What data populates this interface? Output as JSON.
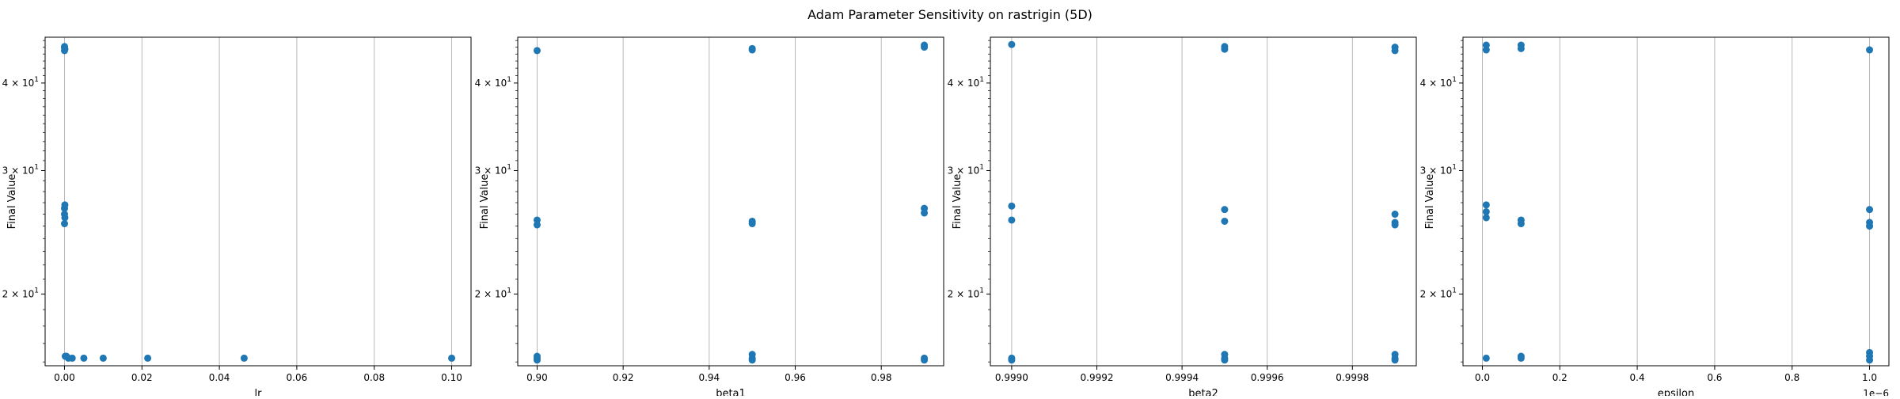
{
  "figure": {
    "title": "Adam Parameter Sensitivity on rastrigin (5D)",
    "marker_color": "#1f77b4",
    "grid_color": "#b0b0b0"
  },
  "chart_data": [
    {
      "type": "scatter",
      "xlabel": "lr",
      "ylabel": "Final Value",
      "yscale": "log",
      "xlim": [
        -0.005,
        0.105
      ],
      "ylim": [
        15.8,
        46.5
      ],
      "grid": "x-axis vertical lines",
      "x_ticks": [
        0.0,
        0.02,
        0.04,
        0.06,
        0.08,
        0.1
      ],
      "x_tick_labels": [
        "0.00",
        "0.02",
        "0.04",
        "0.06",
        "0.08",
        "0.10"
      ],
      "x_offset_text": "",
      "y_ticks": [
        20,
        30,
        40
      ],
      "y_tick_labels": [
        [
          "2",
          "1"
        ],
        [
          "3",
          "1"
        ],
        [
          "4",
          "1"
        ]
      ],
      "points": [
        [
          1e-05,
          44.5
        ],
        [
          1e-05,
          44.9
        ],
        [
          0.0001,
          44.7
        ],
        [
          1e-05,
          45.1
        ],
        [
          1e-05,
          26.5
        ],
        [
          1e-05,
          26.0
        ],
        [
          0.0001,
          25.7
        ],
        [
          1e-05,
          25.2
        ],
        [
          0.0001,
          26.8
        ],
        [
          0.0002,
          16.3
        ],
        [
          0.0005,
          16.3
        ],
        [
          0.001,
          16.2
        ],
        [
          0.002,
          16.2
        ],
        [
          0.005,
          16.2
        ],
        [
          0.01,
          16.2
        ],
        [
          0.0215,
          16.2
        ],
        [
          0.0464,
          16.2
        ],
        [
          0.1,
          16.2
        ]
      ]
    },
    {
      "type": "scatter",
      "xlabel": "beta1",
      "ylabel": "Final Value",
      "yscale": "log",
      "xlim": [
        0.8955,
        0.9945
      ],
      "ylim": [
        15.8,
        46.5
      ],
      "grid": "x-axis vertical lines",
      "x_ticks": [
        0.9,
        0.92,
        0.94,
        0.96,
        0.98
      ],
      "x_tick_labels": [
        "0.90",
        "0.92",
        "0.94",
        "0.96",
        "0.98"
      ],
      "x_offset_text": "",
      "y_ticks": [
        20,
        30,
        40
      ],
      "y_tick_labels": [
        [
          "2",
          "1"
        ],
        [
          "3",
          "1"
        ],
        [
          "4",
          "1"
        ]
      ],
      "points": [
        [
          0.9,
          44.5
        ],
        [
          0.9,
          25.5
        ],
        [
          0.9,
          25.1
        ],
        [
          0.9,
          16.3
        ],
        [
          0.9,
          16.2
        ],
        [
          0.9,
          16.1
        ],
        [
          0.95,
          44.6
        ],
        [
          0.95,
          44.8
        ],
        [
          0.95,
          25.4
        ],
        [
          0.95,
          25.2
        ],
        [
          0.95,
          16.4
        ],
        [
          0.95,
          16.2
        ],
        [
          0.95,
          16.1
        ],
        [
          0.99,
          45.3
        ],
        [
          0.99,
          45.0
        ],
        [
          0.99,
          26.5
        ],
        [
          0.99,
          26.1
        ],
        [
          0.99,
          16.2
        ],
        [
          0.99,
          16.1
        ]
      ]
    },
    {
      "type": "scatter",
      "xlabel": "beta2",
      "ylabel": "Final Value",
      "yscale": "log",
      "xlim": [
        0.99895,
        0.99995
      ],
      "ylim": [
        15.8,
        46.5
      ],
      "grid": "x-axis vertical lines",
      "x_ticks": [
        0.999,
        0.9992,
        0.9994,
        0.9996,
        0.9998
      ],
      "x_tick_labels": [
        "0.9990",
        "0.9992",
        "0.9994",
        "0.9996",
        "0.9998"
      ],
      "x_offset_text": "",
      "y_ticks": [
        20,
        30,
        40
      ],
      "y_tick_labels": [
        [
          "2",
          "1"
        ],
        [
          "3",
          "1"
        ],
        [
          "4",
          "1"
        ]
      ],
      "points": [
        [
          0.999,
          45.4
        ],
        [
          0.999,
          26.7
        ],
        [
          0.999,
          25.5
        ],
        [
          0.999,
          16.2
        ],
        [
          0.999,
          16.1
        ],
        [
          0.9995,
          45.1
        ],
        [
          0.9995,
          44.7
        ],
        [
          0.9995,
          26.4
        ],
        [
          0.9995,
          25.4
        ],
        [
          0.9995,
          16.4
        ],
        [
          0.9995,
          16.2
        ],
        [
          0.9995,
          16.1
        ],
        [
          0.9999,
          45.0
        ],
        [
          0.9999,
          44.5
        ],
        [
          0.9999,
          26.0
        ],
        [
          0.9999,
          25.3
        ],
        [
          0.9999,
          25.1
        ],
        [
          0.9999,
          16.4
        ],
        [
          0.9999,
          16.2
        ],
        [
          0.9999,
          16.1
        ]
      ]
    },
    {
      "type": "scatter",
      "xlabel": "epsilon",
      "ylabel": "Final Value",
      "yscale": "log",
      "xlim": [
        -5e-08,
        1.05e-06
      ],
      "ylim": [
        15.8,
        46.5
      ],
      "grid": "x-axis vertical lines",
      "x_ticks": [
        0,
        2e-07,
        4e-07,
        6e-07,
        8e-07,
        1e-06
      ],
      "x_tick_labels": [
        "0.0",
        "0.2",
        "0.4",
        "0.6",
        "0.8",
        "1.0"
      ],
      "x_offset_text": "1e−6",
      "y_ticks": [
        20,
        30,
        40
      ],
      "y_tick_labels": [
        [
          "2",
          "1"
        ],
        [
          "3",
          "1"
        ],
        [
          "4",
          "1"
        ]
      ],
      "points": [
        [
          1e-08,
          45.3
        ],
        [
          1e-08,
          44.6
        ],
        [
          1e-08,
          26.8
        ],
        [
          1e-08,
          26.2
        ],
        [
          1e-08,
          25.7
        ],
        [
          1e-08,
          16.2
        ],
        [
          1e-07,
          45.3
        ],
        [
          1e-07,
          44.8
        ],
        [
          1e-07,
          25.5
        ],
        [
          1e-07,
          25.2
        ],
        [
          1e-07,
          16.3
        ],
        [
          1e-07,
          16.2
        ],
        [
          1e-06,
          44.6
        ],
        [
          1e-06,
          26.4
        ],
        [
          1e-06,
          25.3
        ],
        [
          1e-06,
          25.0
        ],
        [
          1e-06,
          16.5
        ],
        [
          1e-06,
          16.3
        ],
        [
          1e-06,
          16.1
        ]
      ]
    }
  ]
}
